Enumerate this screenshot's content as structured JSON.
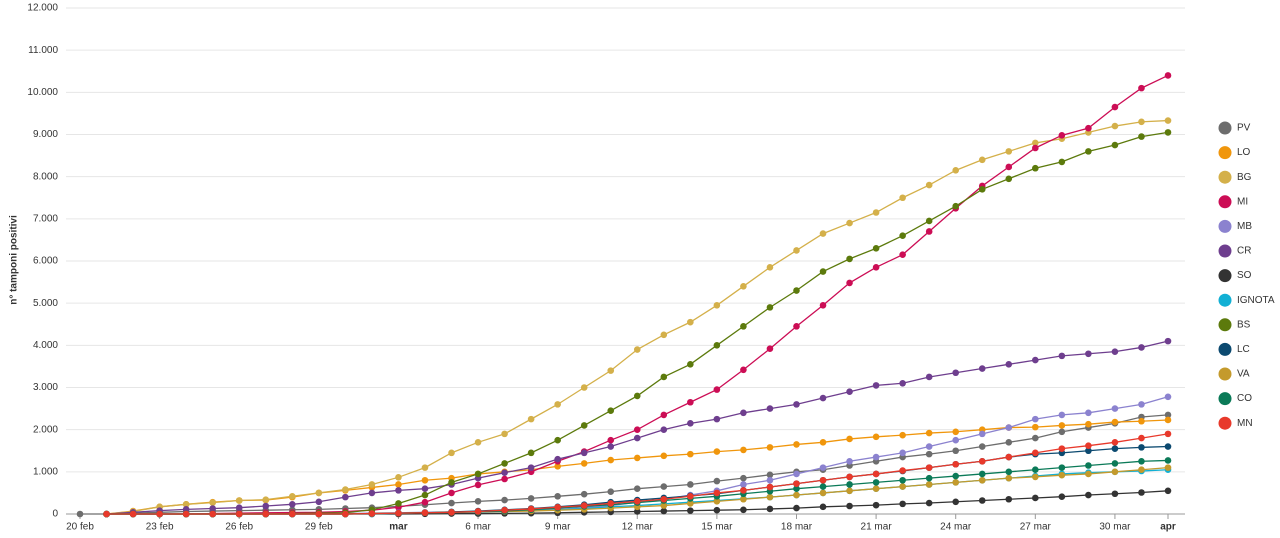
{
  "chart_data": {
    "type": "line",
    "y_label": "n° tamponi positivi",
    "categories": [
      "20 feb",
      null,
      null,
      "23 feb",
      null,
      null,
      "26 feb",
      null,
      null,
      "29 feb",
      null,
      null,
      "mar",
      null,
      null,
      "6 mar",
      null,
      null,
      "9 mar",
      null,
      null,
      "12 mar",
      null,
      null,
      "15 mar",
      null,
      null,
      "18 mar",
      null,
      null,
      "21 mar",
      null,
      null,
      "24 mar",
      null,
      null,
      "27 mar",
      null,
      null,
      "30 mar",
      null,
      "apr"
    ],
    "ylim": [
      0,
      12000
    ],
    "yticks": [
      0,
      {
        "value": 1000,
        "label": "1.000"
      },
      {
        "value": 2000,
        "label": "2.000"
      },
      {
        "value": 3000,
        "label": "3.000"
      },
      {
        "value": 4000,
        "label": "4.000"
      },
      {
        "value": 5000,
        "label": "5.000"
      },
      {
        "value": 6000,
        "label": "6.000"
      },
      {
        "value": 7000,
        "label": "7.000"
      },
      {
        "value": 8000,
        "label": "8.000"
      },
      {
        "value": 9000,
        "label": "9.000"
      },
      {
        "value": 10000,
        "label": "10.000"
      },
      {
        "value": 11000,
        "label": "11.000"
      },
      {
        "value": 12000,
        "label": "12.000"
      }
    ],
    "grid": true,
    "legend": "right",
    "series": [
      {
        "name": "PV",
        "color": "#6d6d6d",
        "values": [
          0,
          0,
          20,
          40,
          60,
          70,
          80,
          90,
          100,
          110,
          130,
          150,
          180,
          220,
          260,
          300,
          330,
          370,
          420,
          470,
          530,
          600,
          650,
          700,
          780,
          850,
          930,
          1000,
          1050,
          1150,
          1250,
          1350,
          1420,
          1500,
          1600,
          1700,
          1800,
          1950,
          2050,
          2150,
          2300,
          2350
        ]
      },
      {
        "name": "LO",
        "color": "#f0960c",
        "values": [
          null,
          0,
          70,
          170,
          230,
          280,
          320,
          330,
          400,
          500,
          560,
          630,
          700,
          800,
          850,
          950,
          1000,
          1050,
          1130,
          1200,
          1280,
          1330,
          1380,
          1420,
          1480,
          1520,
          1580,
          1650,
          1700,
          1780,
          1830,
          1870,
          1920,
          1950,
          2000,
          2050,
          2060,
          2100,
          2130,
          2180,
          2200,
          2230
        ]
      },
      {
        "name": "BG",
        "color": "#d4b04a",
        "values": [
          null,
          0,
          60,
          170,
          230,
          270,
          320,
          340,
          420,
          500,
          580,
          700,
          870,
          1100,
          1450,
          1700,
          1900,
          2250,
          2600,
          3000,
          3400,
          3900,
          4250,
          4550,
          4950,
          5400,
          5850,
          6250,
          6650,
          6900,
          7150,
          7500,
          7800,
          8150,
          8400,
          8600,
          8800,
          8900,
          9050,
          9200,
          9300,
          9330
        ]
      },
      {
        "name": "MI",
        "color": "#cc0d55",
        "values": [
          null,
          0,
          0,
          0,
          0,
          10,
          20,
          30,
          35,
          40,
          60,
          90,
          160,
          280,
          500,
          690,
          830,
          1000,
          1250,
          1480,
          1750,
          2000,
          2350,
          2650,
          2950,
          3420,
          3920,
          4450,
          4950,
          5480,
          5850,
          6150,
          6700,
          7250,
          7780,
          8230,
          8680,
          8980,
          9150,
          9650,
          10100,
          10400
        ]
      },
      {
        "name": "MB",
        "color": "#8b82cf",
        "values": [
          null,
          0,
          0,
          0,
          0,
          0,
          0,
          0,
          0,
          10,
          10,
          20,
          30,
          40,
          50,
          60,
          70,
          90,
          110,
          150,
          200,
          280,
          350,
          450,
          550,
          700,
          800,
          950,
          1100,
          1250,
          1350,
          1450,
          1600,
          1750,
          1900,
          2050,
          2250,
          2350,
          2400,
          2500,
          2600,
          2780
        ]
      },
      {
        "name": "CR",
        "color": "#6e3e8e",
        "values": [
          null,
          0,
          40,
          80,
          110,
          130,
          150,
          190,
          230,
          290,
          400,
          500,
          560,
          600,
          700,
          850,
          980,
          1100,
          1300,
          1450,
          1600,
          1800,
          2000,
          2150,
          2250,
          2400,
          2500,
          2600,
          2750,
          2900,
          3050,
          3100,
          3250,
          3350,
          3450,
          3550,
          3650,
          3750,
          3800,
          3850,
          3950,
          4100
        ]
      },
      {
        "name": "SO",
        "color": "#333333",
        "values": [
          null,
          0,
          0,
          0,
          0,
          0,
          0,
          0,
          0,
          0,
          0,
          0,
          0,
          5,
          10,
          10,
          15,
          20,
          30,
          40,
          50,
          60,
          70,
          80,
          90,
          100,
          120,
          140,
          170,
          190,
          210,
          240,
          260,
          290,
          320,
          350,
          380,
          410,
          450,
          480,
          510,
          550
        ]
      },
      {
        "name": "IGNOTA",
        "color": "#12b0d4",
        "values": [
          null,
          0,
          0,
          0,
          0,
          0,
          0,
          0,
          0,
          0,
          0,
          0,
          20,
          30,
          40,
          50,
          60,
          80,
          100,
          130,
          170,
          200,
          240,
          280,
          320,
          360,
          400,
          450,
          500,
          550,
          600,
          650,
          700,
          750,
          800,
          850,
          900,
          950,
          980,
          1000,
          1020,
          1050
        ]
      },
      {
        "name": "BS",
        "color": "#5c7a0c",
        "values": [
          null,
          0,
          0,
          0,
          0,
          0,
          0,
          0,
          10,
          20,
          30,
          100,
          250,
          450,
          750,
          950,
          1200,
          1450,
          1750,
          2100,
          2450,
          2800,
          3250,
          3550,
          4000,
          4450,
          4900,
          5300,
          5750,
          6050,
          6300,
          6600,
          6950,
          7300,
          7700,
          7950,
          8200,
          8350,
          8600,
          8750,
          8950,
          9050
        ]
      },
      {
        "name": "LC",
        "color": "#0c4a70",
        "values": [
          null,
          0,
          0,
          0,
          0,
          0,
          0,
          0,
          0,
          0,
          0,
          10,
          20,
          30,
          50,
          70,
          100,
          130,
          170,
          220,
          280,
          330,
          380,
          430,
          480,
          560,
          640,
          720,
          800,
          880,
          950,
          1020,
          1100,
          1180,
          1250,
          1350,
          1420,
          1450,
          1500,
          1550,
          1580,
          1600
        ]
      },
      {
        "name": "VA",
        "color": "#c49a2c",
        "values": [
          null,
          0,
          0,
          0,
          0,
          0,
          0,
          0,
          0,
          0,
          0,
          10,
          20,
          30,
          40,
          50,
          60,
          70,
          90,
          110,
          140,
          170,
          200,
          250,
          300,
          350,
          400,
          450,
          500,
          550,
          600,
          650,
          700,
          750,
          800,
          850,
          880,
          920,
          950,
          1000,
          1050,
          1100
        ]
      },
      {
        "name": "CO",
        "color": "#0b7a58",
        "values": [
          null,
          0,
          0,
          0,
          0,
          0,
          0,
          0,
          0,
          0,
          0,
          10,
          20,
          30,
          40,
          50,
          70,
          100,
          140,
          180,
          220,
          270,
          320,
          370,
          420,
          480,
          540,
          600,
          650,
          700,
          750,
          800,
          850,
          900,
          950,
          1000,
          1050,
          1100,
          1150,
          1200,
          1250,
          1270
        ]
      },
      {
        "name": "MN",
        "color": "#e8392b",
        "values": [
          null,
          0,
          0,
          0,
          0,
          0,
          0,
          0,
          0,
          0,
          0,
          10,
          20,
          30,
          40,
          60,
          90,
          120,
          160,
          200,
          250,
          300,
          350,
          420,
          500,
          560,
          640,
          720,
          800,
          880,
          950,
          1030,
          1100,
          1180,
          1250,
          1350,
          1450,
          1550,
          1620,
          1700,
          1800,
          1900
        ]
      }
    ]
  }
}
